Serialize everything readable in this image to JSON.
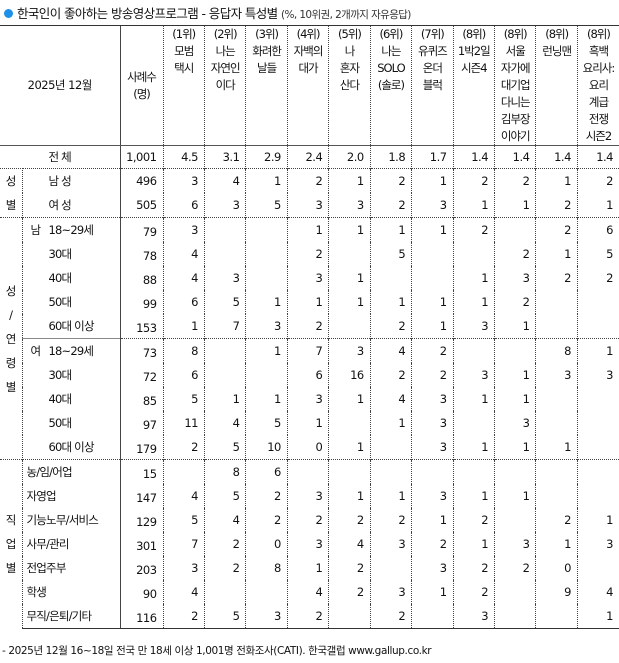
{
  "title": "한국인이 좋아하는 방송영상프로그램 - 응답자 특성별",
  "subtitle": "(%, 10위권, 2개까지 자유응답)",
  "corner": "2025년 12월",
  "count_header": "사례수\n(명)",
  "columns": [
    {
      "rank": "(1위)",
      "name": "모범\n택시"
    },
    {
      "rank": "(2위)",
      "name": "나는\n자연인\n이다"
    },
    {
      "rank": "(3위)",
      "name": "화려한\n날들"
    },
    {
      "rank": "(4위)",
      "name": "자백의\n대가"
    },
    {
      "rank": "(5위)",
      "name": "나\n혼자\n산다"
    },
    {
      "rank": "(6위)",
      "name": "나는\nSOLO\n(솔로)"
    },
    {
      "rank": "(7위)",
      "name": "유퀴즈\n온더\n블럭"
    },
    {
      "rank": "(8위)",
      "name": "1박2일\n시즌4"
    },
    {
      "rank": "(8위)",
      "name": "서울\n자가에\n대기업\n다니는\n김부장\n이야기"
    },
    {
      "rank": "(8위)",
      "name": "런닝맨"
    },
    {
      "rank": "(8위)",
      "name": "흑백\n요리사:\n요리\n계급\n전쟁\n시즌2"
    }
  ],
  "total": {
    "label": "전 체",
    "count": "1,001",
    "values": [
      "4.5",
      "3.1",
      "2.9",
      "2.4",
      "2.0",
      "1.8",
      "1.7",
      "1.4",
      "1.4",
      "1.4",
      "1.4"
    ]
  },
  "groups": [
    {
      "label": "성\n별",
      "type": "sex",
      "rows": [
        {
          "prefix": "",
          "label": "남 성",
          "count": "496",
          "values": [
            "3",
            "4",
            "1",
            "2",
            "1",
            "2",
            "1",
            "2",
            "2",
            "1",
            "2"
          ]
        },
        {
          "prefix": "",
          "label": "여 성",
          "count": "505",
          "values": [
            "6",
            "3",
            "5",
            "3",
            "3",
            "2",
            "3",
            "1",
            "1",
            "2",
            "1"
          ]
        }
      ]
    },
    {
      "label": "성\n/\n연\n령\n별",
      "type": "age",
      "rows": [
        {
          "prefix": "남",
          "label": "18~29세",
          "count": "79",
          "values": [
            "3",
            "",
            "",
            "1",
            "1",
            "1",
            "1",
            "2",
            "",
            "2",
            "6"
          ]
        },
        {
          "prefix": "",
          "label": "30대",
          "count": "78",
          "values": [
            "4",
            "",
            "",
            "2",
            "",
            "5",
            "",
            "",
            "2",
            "1",
            "5"
          ]
        },
        {
          "prefix": "",
          "label": "40대",
          "count": "88",
          "values": [
            "4",
            "3",
            "",
            "3",
            "1",
            "",
            "",
            "1",
            "3",
            "2",
            "2"
          ]
        },
        {
          "prefix": "",
          "label": "50대",
          "count": "99",
          "values": [
            "6",
            "5",
            "1",
            "1",
            "1",
            "1",
            "1",
            "1",
            "2",
            "",
            ""
          ]
        },
        {
          "prefix": "",
          "label": "60대 이상",
          "count": "153",
          "values": [
            "1",
            "7",
            "3",
            "2",
            "",
            "2",
            "1",
            "3",
            "1",
            "",
            ""
          ]
        },
        {
          "prefix": "여",
          "label": "18~29세",
          "count": "73",
          "values": [
            "8",
            "",
            "1",
            "7",
            "3",
            "4",
            "2",
            "",
            "",
            "8",
            "1"
          ]
        },
        {
          "prefix": "",
          "label": "30대",
          "count": "72",
          "values": [
            "6",
            "",
            "",
            "6",
            "16",
            "2",
            "2",
            "3",
            "1",
            "3",
            "3"
          ]
        },
        {
          "prefix": "",
          "label": "40대",
          "count": "85",
          "values": [
            "5",
            "1",
            "1",
            "3",
            "1",
            "4",
            "3",
            "1",
            "1",
            "",
            ""
          ]
        },
        {
          "prefix": "",
          "label": "50대",
          "count": "97",
          "values": [
            "11",
            "4",
            "5",
            "1",
            "",
            "1",
            "3",
            "",
            "3",
            "",
            ""
          ]
        },
        {
          "prefix": "",
          "label": "60대 이상",
          "count": "179",
          "values": [
            "2",
            "5",
            "10",
            "0",
            "1",
            "",
            "3",
            "1",
            "1",
            "1",
            ""
          ]
        }
      ]
    },
    {
      "label": "직\n업\n별",
      "type": "job",
      "rows": [
        {
          "prefix": "",
          "label": "농/임/어업",
          "count": "15",
          "values": [
            "",
            "8",
            "6",
            "",
            "",
            "",
            "",
            "",
            "",
            "",
            ""
          ]
        },
        {
          "prefix": "",
          "label": "자영업",
          "count": "147",
          "values": [
            "4",
            "5",
            "2",
            "3",
            "1",
            "1",
            "3",
            "1",
            "1",
            "",
            ""
          ]
        },
        {
          "prefix": "",
          "label": "기능노무/서비스",
          "count": "129",
          "values": [
            "5",
            "4",
            "2",
            "2",
            "2",
            "2",
            "1",
            "2",
            "",
            "2",
            "1"
          ]
        },
        {
          "prefix": "",
          "label": "사무/관리",
          "count": "301",
          "values": [
            "7",
            "2",
            "0",
            "3",
            "4",
            "3",
            "2",
            "1",
            "3",
            "1",
            "3"
          ]
        },
        {
          "prefix": "",
          "label": "전업주부",
          "count": "203",
          "values": [
            "3",
            "2",
            "8",
            "1",
            "2",
            "",
            "3",
            "2",
            "2",
            "0",
            ""
          ]
        },
        {
          "prefix": "",
          "label": "학생",
          "count": "90",
          "values": [
            "4",
            "",
            "",
            "4",
            "2",
            "3",
            "1",
            "2",
            "",
            "9",
            "4"
          ]
        },
        {
          "prefix": "",
          "label": "무직/은퇴/기타",
          "count": "116",
          "values": [
            "2",
            "5",
            "3",
            "2",
            "",
            "2",
            "",
            "3",
            "",
            "",
            "1"
          ]
        }
      ]
    }
  ],
  "footnote": "- 2025년 12월 16~18일 전국 만 18세 이상 1,001명 전화조사(CATI). 한국갤럽 www.gallup.co.kr",
  "colors": {
    "bullet": "#1e90e8"
  }
}
